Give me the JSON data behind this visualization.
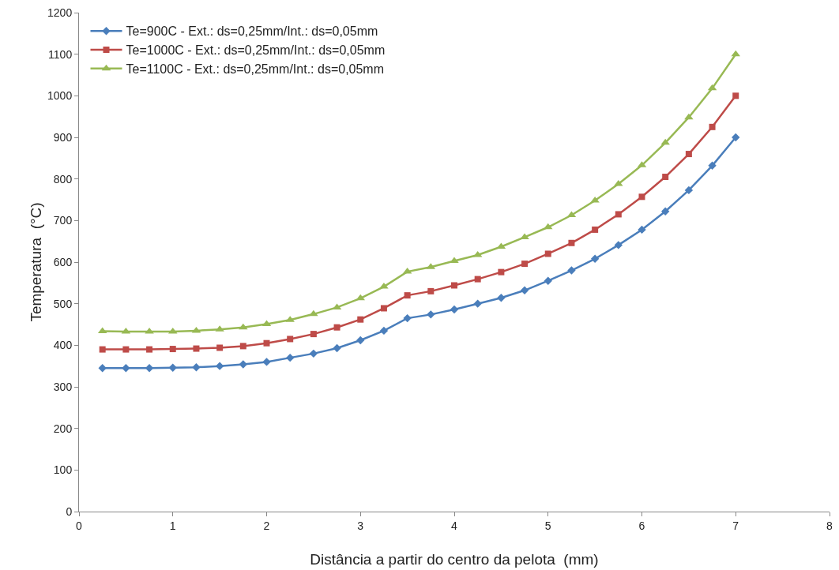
{
  "chart_data": {
    "type": "line",
    "xlabel": "Distância a partir do centro da pelota  (mm)",
    "ylabel": "Temperatura  (°C)",
    "x": [
      0.25,
      0.5,
      0.75,
      1,
      1.25,
      1.5,
      1.75,
      2,
      2.25,
      2.5,
      2.75,
      3,
      3.25,
      3.5,
      3.75,
      4,
      4.25,
      4.5,
      4.75,
      5,
      5.25,
      5.5,
      5.75,
      6,
      6.25,
      6.5,
      6.75,
      7
    ],
    "series": [
      {
        "name": "Te=900C - Ext.: ds=0,25mm/Int.: ds=0,05mm",
        "color": "#4a7ebb",
        "marker": "diamond",
        "values": [
          345,
          345,
          345,
          346,
          347,
          350,
          354,
          360,
          370,
          380,
          393,
          412,
          435,
          465,
          474,
          486,
          500,
          514,
          532,
          555,
          580,
          608,
          641,
          678,
          722,
          773,
          832,
          900
        ]
      },
      {
        "name": "Te=1000C - Ext.: ds=0,25mm/Int.: ds=0,05mm",
        "color": "#be4b48",
        "marker": "square",
        "values": [
          390,
          390,
          390,
          391,
          392,
          394,
          398,
          405,
          415,
          427,
          443,
          462,
          489,
          520,
          530,
          544,
          559,
          576,
          596,
          620,
          646,
          678,
          715,
          757,
          805,
          860,
          925,
          1000
        ]
      },
      {
        "name": "Te=1100C - Ext.: ds=0,25mm/Int.: ds=0,05mm",
        "color": "#98b954",
        "marker": "triangle",
        "values": [
          434,
          433,
          433,
          433,
          435,
          438,
          443,
          451,
          461,
          475,
          491,
          513,
          541,
          577,
          588,
          603,
          617,
          637,
          660,
          684,
          713,
          748,
          788,
          833,
          887,
          948,
          1018,
          1100
        ]
      }
    ],
    "xlim": [
      0,
      8
    ],
    "xticks": [
      0,
      1,
      2,
      3,
      4,
      5,
      6,
      7,
      8
    ],
    "ylim": [
      0,
      1200
    ],
    "yticks": [
      0,
      100,
      200,
      300,
      400,
      500,
      600,
      700,
      800,
      900,
      1000,
      1100,
      1200
    ],
    "grid": false,
    "legend": "top left",
    "line_style": "solid"
  }
}
